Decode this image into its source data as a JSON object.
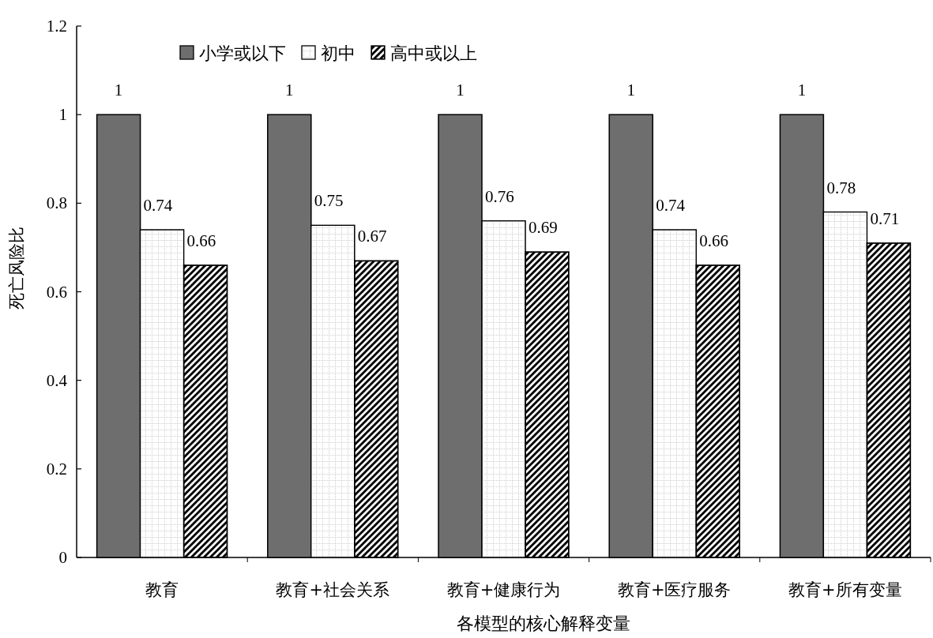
{
  "chart_data": {
    "type": "bar",
    "xlabel": "各模型的核心解释变量",
    "ylabel": "死亡风险比",
    "categories": [
      "教育",
      "教育+社会关系",
      "教育+健康行为",
      "教育+医疗服务",
      "教育+所有变量"
    ],
    "series": [
      {
        "name": "小学或以下",
        "color": "#6e6e6e",
        "values": [
          1,
          1,
          1,
          1,
          1
        ]
      },
      {
        "name": "初中",
        "color": "#ffffff",
        "values": [
          0.74,
          0.75,
          0.76,
          0.74,
          0.78
        ]
      },
      {
        "name": "高中或以上",
        "color": "#000000",
        "values": [
          0.66,
          0.67,
          0.69,
          0.66,
          0.71
        ]
      }
    ],
    "ylim": [
      0,
      1.2
    ],
    "yticks": [
      0,
      0.2,
      0.4,
      0.6,
      0.8,
      1,
      1.2
    ],
    "data_labels": true,
    "legend": "top left",
    "grid": false
  }
}
